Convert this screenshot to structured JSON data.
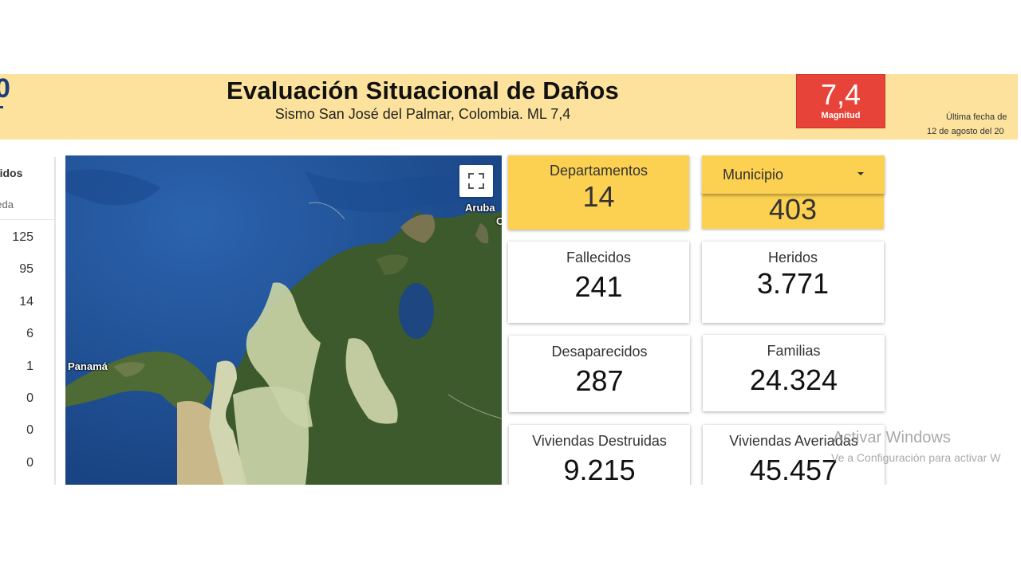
{
  "header": {
    "logo_fragment": "0",
    "title": "Evaluación Situacional de Daños",
    "subtitle": "Sismo San José del Palmar, Colombia. ML 7,4",
    "magnitude": {
      "value": "7,4",
      "label": "Magnitud"
    },
    "update_label": "Última fecha de",
    "update_date": "12 de agosto del 20"
  },
  "left_panel": {
    "header": "ecidos",
    "search_placeholder": "ueda",
    "values": [
      "125",
      "95",
      "14",
      "6",
      "1",
      "0",
      "0",
      "0"
    ]
  },
  "map": {
    "labels": {
      "aruba": "Aruba",
      "aruba_cut": "C",
      "panama": "Panamá"
    },
    "fullscreen_icon": "fullscreen-icon"
  },
  "stats": {
    "departamentos": {
      "label": "Departamentos",
      "value": "14"
    },
    "municipio": {
      "label": "Municipio",
      "value": "403"
    },
    "fallecidos": {
      "label": "Fallecidos",
      "value": "241"
    },
    "heridos": {
      "label": "Heridos",
      "value": "3.771"
    },
    "desaparecidos": {
      "label": "Desaparecidos",
      "value": "287"
    },
    "familias": {
      "label": "Familias",
      "value": "24.324"
    },
    "viviendas_destruidas": {
      "label": "Viviendas Destruidas",
      "value": "9.215"
    },
    "viviendas_averiadas": {
      "label": "Viviendas Averiadas",
      "value": "45.457"
    }
  },
  "watermark": {
    "line1": "Activar Windows",
    "line2": "Ve a Configuración para activar W"
  },
  "colors": {
    "header_bg": "#fce29c",
    "accent_yellow": "#fcd152",
    "magnitude_red": "#e84338"
  }
}
